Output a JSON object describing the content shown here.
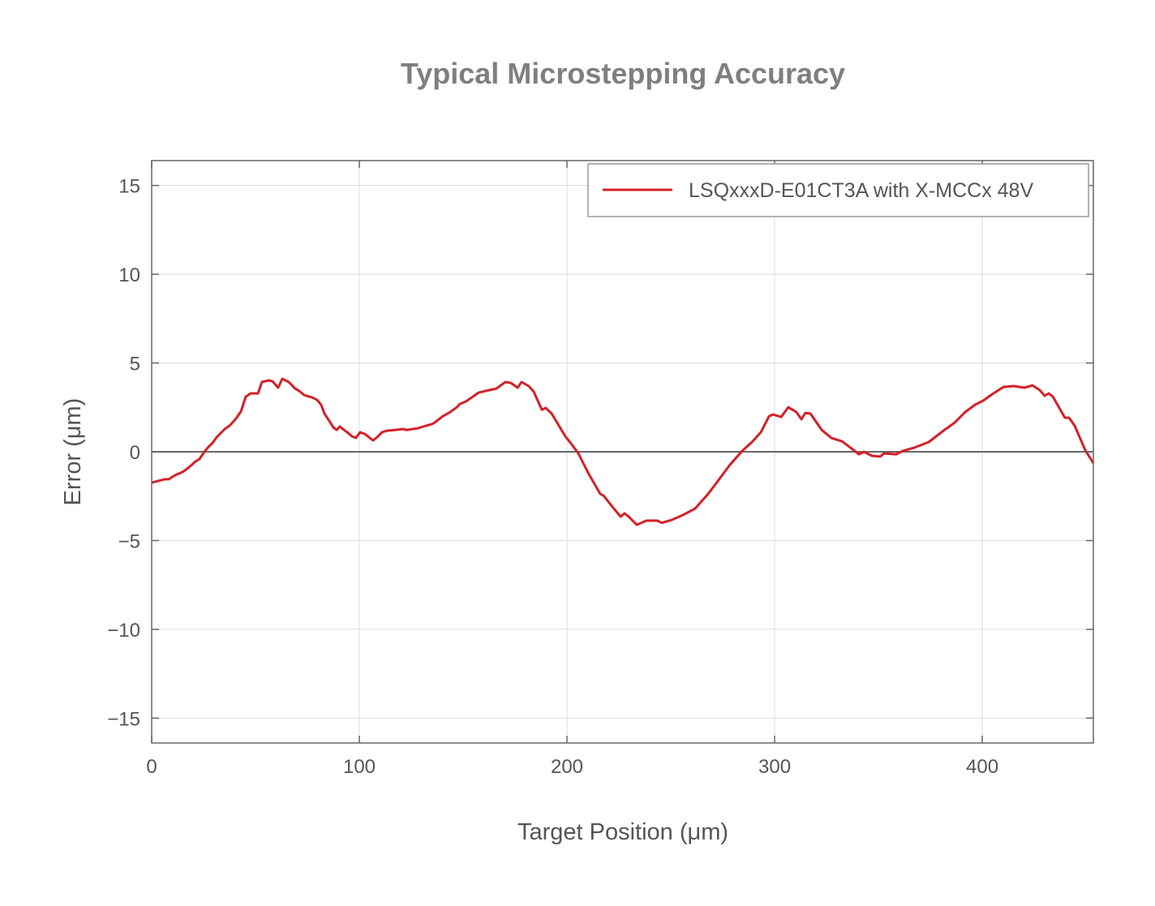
{
  "chart_data": {
    "type": "line",
    "title": "Typical Microstepping Accuracy",
    "xlabel": "Target Position (μm)",
    "ylabel": "Error (μm)",
    "xlim": [
      0,
      453.5
    ],
    "ylim": [
      -16.4,
      16.4
    ],
    "xticks": [
      0,
      100,
      200,
      300,
      400
    ],
    "xtick_labels": [
      "0",
      "100",
      "200",
      "300",
      "400"
    ],
    "yticks": [
      15,
      10,
      5,
      0,
      -5,
      -10,
      -15
    ],
    "ytick_labels": [
      "15",
      "10",
      "5",
      "0",
      "−10",
      "−15"
    ],
    "ytick_labels_all": [
      "15",
      "10",
      "5",
      "0",
      "−5",
      "−10",
      "−15"
    ],
    "grid": true,
    "legend_position": "top-right",
    "series": [
      {
        "name": "LSQxxxD-E01CT3A with X-MCCx 48V",
        "color": "#d42027",
        "x": [
          0,
          3.1,
          6.3,
          8.2,
          11.3,
          14.8,
          17.6,
          21.1,
          23.0,
          25.4,
          27.0,
          29.3,
          31.3,
          35.2,
          37.9,
          40.6,
          43.0,
          45.3,
          47.7,
          51.2,
          53.1,
          56.3,
          58.2,
          60.9,
          62.9,
          66.0,
          69.1,
          71.1,
          73.4,
          77.3,
          79.7,
          81.6,
          83.2,
          85.5,
          87.5,
          89.1,
          90.6,
          94.1,
          96.5,
          98.4,
          100.4,
          102.7,
          106.6,
          109.0,
          110.9,
          113.3,
          117.2,
          121.1,
          123.0,
          125.4,
          128.1,
          132.0,
          134.8,
          136.3,
          138.3,
          140.2,
          143.8,
          146.9,
          148.4,
          151.2,
          153.5,
          157.4,
          162.5,
          166.0,
          170.3,
          173.0,
          176.2,
          178.1,
          181.6,
          184.0,
          187.9,
          189.8,
          192.6,
          199.2,
          202.3,
          205.5,
          210.2,
          216.0,
          217.6,
          221.9,
          225.8,
          227.7,
          229.7,
          233.6,
          238.3,
          243.4,
          245.7,
          250.4,
          255.9,
          261.7,
          268.0,
          278.5,
          284.4,
          289.1,
          293.4,
          297.3,
          299.2,
          303.1,
          306.6,
          310.5,
          312.9,
          314.8,
          317.2,
          322.7,
          327.3,
          332.4,
          337.1,
          340.6,
          343.0,
          346.9,
          350.8,
          352.7,
          358.6,
          361.7,
          367.2,
          374.2,
          381.3,
          386.7,
          391.8,
          396.5,
          400.4,
          404.7,
          410.2,
          415.2,
          420.3,
          424.2,
          427.7,
          430.1,
          432.0,
          434.0,
          439.8,
          441.8,
          444.5,
          449.6,
          453.5
        ],
        "y": [
          -1.74,
          -1.64,
          -1.55,
          -1.55,
          -1.32,
          -1.14,
          -0.91,
          -0.55,
          -0.41,
          0,
          0.23,
          0.5,
          0.82,
          1.28,
          1.51,
          1.87,
          2.28,
          3.1,
          3.29,
          3.29,
          3.93,
          4.02,
          3.97,
          3.61,
          4.11,
          3.93,
          3.56,
          3.42,
          3.2,
          3.06,
          2.92,
          2.65,
          2.15,
          1.74,
          1.37,
          1.23,
          1.42,
          1.1,
          0.87,
          0.78,
          1.1,
          1.0,
          0.64,
          0.87,
          1.1,
          1.19,
          1.23,
          1.28,
          1.23,
          1.28,
          1.32,
          1.46,
          1.55,
          1.64,
          1.83,
          2.0,
          2.24,
          2.51,
          2.69,
          2.83,
          3.01,
          3.33,
          3.47,
          3.56,
          3.93,
          3.88,
          3.61,
          3.93,
          3.7,
          3.38,
          2.37,
          2.47,
          2.15,
          0.87,
          0.41,
          -0.09,
          -1.19,
          -2.37,
          -2.47,
          -3.1,
          -3.65,
          -3.47,
          -3.65,
          -4.11,
          -3.88,
          -3.88,
          -4.0,
          -3.84,
          -3.56,
          -3.2,
          -2.37,
          -0.73,
          0.05,
          0.55,
          1.1,
          2.0,
          2.1,
          1.96,
          2.51,
          2.24,
          1.83,
          2.19,
          2.15,
          1.23,
          0.78,
          0.59,
          0.18,
          -0.14,
          0,
          -0.23,
          -0.27,
          -0.09,
          -0.14,
          0.05,
          0.23,
          0.55,
          1.19,
          1.64,
          2.24,
          2.65,
          2.88,
          3.24,
          3.65,
          3.7,
          3.61,
          3.74,
          3.47,
          3.15,
          3.29,
          3.1,
          1.92,
          1.92,
          1.46,
          0.09,
          -0.64
        ]
      }
    ]
  }
}
